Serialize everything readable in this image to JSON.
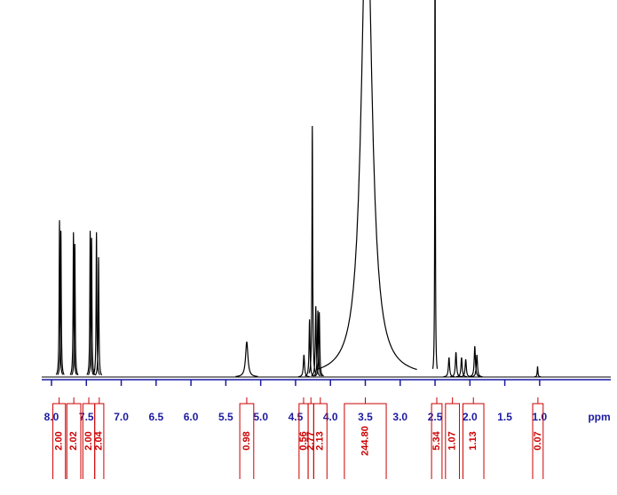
{
  "chart_data": {
    "type": "spectrum",
    "x_label": "ppm",
    "xlim": [
      8.14,
      -0.02
    ],
    "ylim": [
      0,
      100
    ],
    "xticks": [
      {
        "value": 8,
        "label": "8.0"
      },
      {
        "value": 7.5,
        "label": "7.5"
      },
      {
        "value": 7,
        "label": "7.0"
      },
      {
        "value": 6.5,
        "label": "6.5"
      },
      {
        "value": 6,
        "label": "6.0"
      },
      {
        "value": 5.5,
        "label": "5.5"
      },
      {
        "value": 5,
        "label": "5.0"
      },
      {
        "value": 4.5,
        "label": "4.5"
      },
      {
        "value": 4,
        "label": "4.0"
      },
      {
        "value": 3.5,
        "label": "3.5"
      },
      {
        "value": 3,
        "label": "3.0"
      },
      {
        "value": 2.5,
        "label": "2.5"
      },
      {
        "value": 2,
        "label": "2.0"
      },
      {
        "value": 1.5,
        "label": "1.5"
      },
      {
        "value": 1,
        "label": "1.0"
      }
    ],
    "color": "#000000",
    "peaks": {
      "ppm": [
        7.885,
        7.865,
        7.685,
        7.665,
        7.445,
        7.425,
        7.355,
        7.325,
        5.2,
        4.38,
        4.3,
        4.26,
        4.21,
        4.18,
        4.16,
        3.48,
        2.5,
        2.3,
        2.2,
        2.12,
        2.06,
        1.93,
        1.9,
        1.03
      ],
      "height": [
        41.6,
        38.8,
        38.4,
        35.3,
        38.8,
        36.9,
        38.4,
        31.8,
        9.4,
        5.9,
        15.3,
        66.6,
        18.8,
        17.6,
        17.2,
        130,
        140,
        5.2,
        6.6,
        5.2,
        4.7,
        8.2,
        5.9,
        2.8
      ],
      "width": [
        0.006,
        0.006,
        0.006,
        0.006,
        0.006,
        0.006,
        0.006,
        0.006,
        0.02,
        0.01,
        0.008,
        0.006,
        0.008,
        0.008,
        0.008,
        0.09,
        0.004,
        0.01,
        0.01,
        0.01,
        0.01,
        0.01,
        0.01,
        0.006
      ]
    },
    "integrals": {
      "values": [
        2,
        2.02,
        2,
        2.04,
        0.98,
        0.56,
        2.77,
        2.13,
        244.8,
        5.34,
        1.07,
        1.13,
        0.07
      ],
      "value_labels": [
        "2.00",
        "2.02",
        "2.00",
        "2.04",
        "0.98",
        "0.56",
        "2.77",
        "2.13",
        "244.80",
        "5.34",
        "1.07",
        "1.13",
        "0.07"
      ],
      "ranges": [
        [
          7.98,
          7.8
        ],
        [
          7.78,
          7.58
        ],
        [
          7.55,
          7.38
        ],
        [
          7.38,
          7.25
        ],
        [
          5.3,
          5.1
        ],
        [
          4.45,
          4.32
        ],
        [
          4.32,
          4.24
        ],
        [
          4.24,
          4.05
        ],
        [
          3.8,
          3.2
        ],
        [
          2.55,
          2.4
        ],
        [
          2.35,
          2.15
        ],
        [
          2.1,
          1.8
        ],
        [
          1.1,
          0.95
        ]
      ],
      "color": "#cc0000"
    }
  }
}
